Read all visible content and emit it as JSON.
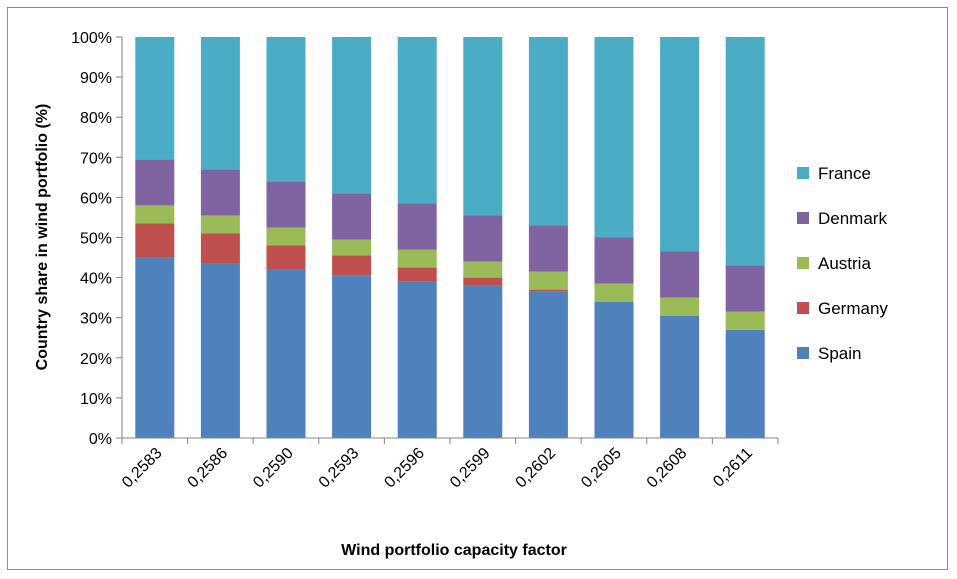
{
  "chart_data": {
    "type": "bar",
    "stacked": true,
    "normalized": true,
    "title": "",
    "xlabel": "Wind portfolio capacity factor",
    "ylabel": "Country share in wind portfolio (%)",
    "ylim": [
      0,
      100
    ],
    "yticks": [
      "0%",
      "10%",
      "20%",
      "30%",
      "40%",
      "50%",
      "60%",
      "70%",
      "80%",
      "90%",
      "100%"
    ],
    "categories": [
      "0,2583",
      "0,2586",
      "0,2590",
      "0,2593",
      "0,2596",
      "0,2599",
      "0,2602",
      "0,2605",
      "0,2608",
      "0,2611"
    ],
    "legend_position": "right",
    "grid": false,
    "series": [
      {
        "name": "Spain",
        "color": "#4F81BD",
        "values": [
          45,
          43.5,
          42,
          40.5,
          39,
          38,
          36.5,
          34,
          30.5,
          27
        ]
      },
      {
        "name": "Germany",
        "color": "#C0504D",
        "values": [
          8.5,
          7.5,
          6,
          5,
          3.5,
          2,
          0.5,
          0,
          0,
          0
        ]
      },
      {
        "name": "Austria",
        "color": "#9BBB59",
        "values": [
          4.5,
          4.5,
          4.5,
          4,
          4.5,
          4,
          4.5,
          4.5,
          4.5,
          4.5
        ]
      },
      {
        "name": "Denmark",
        "color": "#8064A2",
        "values": [
          11.5,
          11.5,
          11.5,
          11.5,
          11.5,
          11.5,
          11.5,
          11.5,
          11.5,
          11.5
        ]
      },
      {
        "name": "France",
        "color": "#4BACC6",
        "values": [
          30.5,
          33,
          36,
          39,
          41.5,
          44.5,
          47,
          50,
          53.5,
          57
        ]
      }
    ]
  }
}
